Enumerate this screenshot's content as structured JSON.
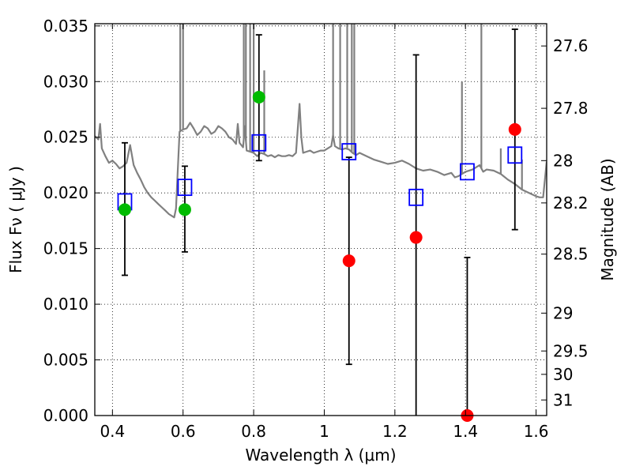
{
  "chart_data": {
    "type": "scatter",
    "xlabel": "Wavelength  λ (μm)",
    "ylabel": "Flux  Fν  ( μJy )",
    "y2label": "Magnitude (AB)",
    "xlim": [
      0.35,
      1.63
    ],
    "ylim": [
      0.0,
      0.0352
    ],
    "x_ticks": [
      0.4,
      0.6,
      0.8,
      1.0,
      1.2,
      1.4,
      1.6
    ],
    "x_tick_labels": [
      "0.4",
      "0.6",
      "0.8",
      "1",
      "1.2",
      "1.4",
      "1.6"
    ],
    "y_ticks": [
      0.0,
      0.005,
      0.01,
      0.015,
      0.02,
      0.025,
      0.03,
      0.035
    ],
    "y_tick_labels": [
      "0.000",
      "0.005",
      "0.010",
      "0.015",
      "0.020",
      "0.025",
      "0.030",
      "0.035"
    ],
    "y2_ticks": [
      {
        "label": "27.6",
        "flux": 0.0332
      },
      {
        "label": "27.8",
        "flux": 0.0276
      },
      {
        "label": "28",
        "flux": 0.0229
      },
      {
        "label": "28.2",
        "flux": 0.0191
      },
      {
        "label": "28.5",
        "flux": 0.0145
      },
      {
        "label": "29",
        "flux": 0.0092
      },
      {
        "label": "29.5",
        "flux": 0.0058
      },
      {
        "label": "30",
        "flux": 0.0037
      },
      {
        "label": "31",
        "flux": 0.0014
      }
    ],
    "grid": true,
    "colors": {
      "spectrum": "#808080",
      "model": "#0000ff",
      "green": "#00bb00",
      "red": "#ff0000",
      "errorbar": "#000000"
    },
    "spectrum": {
      "x": [
        0.35,
        0.36,
        0.365,
        0.37,
        0.38,
        0.39,
        0.4,
        0.41,
        0.42,
        0.43,
        0.44,
        0.45,
        0.46,
        0.47,
        0.48,
        0.49,
        0.5,
        0.51,
        0.52,
        0.53,
        0.54,
        0.55,
        0.56,
        0.57,
        0.575,
        0.58,
        0.585,
        0.59,
        0.6,
        0.61,
        0.62,
        0.63,
        0.64,
        0.65,
        0.66,
        0.67,
        0.68,
        0.69,
        0.7,
        0.71,
        0.72,
        0.73,
        0.74,
        0.75,
        0.755,
        0.76,
        0.77,
        0.775,
        0.78,
        0.79,
        0.8,
        0.81,
        0.82,
        0.83,
        0.84,
        0.85,
        0.86,
        0.87,
        0.88,
        0.89,
        0.9,
        0.91,
        0.92,
        0.93,
        0.935,
        0.94,
        0.95,
        0.96,
        0.97,
        0.98,
        0.99,
        1.0,
        1.01,
        1.02,
        1.025,
        1.03,
        1.04,
        1.05,
        1.06,
        1.07,
        1.08,
        1.09,
        1.1,
        1.12,
        1.14,
        1.16,
        1.18,
        1.2,
        1.22,
        1.24,
        1.26,
        1.28,
        1.3,
        1.32,
        1.34,
        1.36,
        1.37,
        1.38,
        1.4,
        1.42,
        1.44,
        1.45,
        1.46,
        1.48,
        1.5,
        1.52,
        1.54,
        1.56,
        1.58,
        1.6,
        1.61,
        1.62,
        1.63
      ],
      "y": [
        0.0251,
        0.0248,
        0.0262,
        0.024,
        0.0233,
        0.0227,
        0.0229,
        0.0226,
        0.0222,
        0.0224,
        0.0227,
        0.0243,
        0.0225,
        0.0218,
        0.0212,
        0.0205,
        0.02,
        0.0196,
        0.0193,
        0.019,
        0.0187,
        0.0184,
        0.0181,
        0.0179,
        0.0178,
        0.0186,
        0.022,
        0.0255,
        0.0257,
        0.0258,
        0.0263,
        0.0258,
        0.0252,
        0.0255,
        0.026,
        0.0258,
        0.0253,
        0.0255,
        0.026,
        0.0258,
        0.0255,
        0.025,
        0.0248,
        0.0244,
        0.0262,
        0.0245,
        0.0241,
        0.026,
        0.0238,
        0.0237,
        0.0236,
        0.0233,
        0.0236,
        0.0235,
        0.0233,
        0.0234,
        0.0232,
        0.0234,
        0.0233,
        0.0233,
        0.0234,
        0.0233,
        0.0236,
        0.028,
        0.025,
        0.0236,
        0.0237,
        0.0238,
        0.0236,
        0.0237,
        0.0238,
        0.0238,
        0.024,
        0.0242,
        0.0252,
        0.0242,
        0.024,
        0.0239,
        0.024,
        0.0239,
        0.0236,
        0.0234,
        0.0236,
        0.0233,
        0.023,
        0.0228,
        0.0226,
        0.0227,
        0.0229,
        0.0226,
        0.0222,
        0.022,
        0.0221,
        0.0219,
        0.0216,
        0.0218,
        0.0214,
        0.0215,
        0.0219,
        0.0221,
        0.0225,
        0.0219,
        0.0221,
        0.022,
        0.0217,
        0.0212,
        0.0208,
        0.0203,
        0.02,
        0.0197,
        0.0196,
        0.0196,
        0.0228
      ]
    },
    "spectrum_spikes": [
      {
        "x": 0.592,
        "y": 0.0352
      },
      {
        "x": 0.6,
        "y": 0.0352
      },
      {
        "x": 0.772,
        "y": 0.0352
      },
      {
        "x": 0.778,
        "y": 0.0352
      },
      {
        "x": 0.79,
        "y": 0.0352
      },
      {
        "x": 0.8,
        "y": 0.0352
      },
      {
        "x": 0.83,
        "y": 0.031
      },
      {
        "x": 1.025,
        "y": 0.0352
      },
      {
        "x": 1.045,
        "y": 0.0352
      },
      {
        "x": 1.065,
        "y": 0.0352
      },
      {
        "x": 1.078,
        "y": 0.0352
      },
      {
        "x": 1.085,
        "y": 0.0352
      },
      {
        "x": 1.39,
        "y": 0.03
      },
      {
        "x": 1.445,
        "y": 0.0352
      },
      {
        "x": 1.5,
        "y": 0.024
      },
      {
        "x": 1.56,
        "y": 0.023
      }
    ],
    "model_points": [
      {
        "x": 0.435,
        "y": 0.0192
      },
      {
        "x": 0.605,
        "y": 0.0205
      },
      {
        "x": 0.815,
        "y": 0.0245
      },
      {
        "x": 1.07,
        "y": 0.0237
      },
      {
        "x": 1.26,
        "y": 0.0196
      },
      {
        "x": 1.405,
        "y": 0.0219
      },
      {
        "x": 1.54,
        "y": 0.0234
      }
    ],
    "green_points": [
      {
        "x": 0.435,
        "y": 0.0185
      },
      {
        "x": 0.605,
        "y": 0.0185
      },
      {
        "x": 0.815,
        "y": 0.0286
      }
    ],
    "red_points": [
      {
        "x": 1.07,
        "y": 0.0139
      },
      {
        "x": 1.26,
        "y": 0.016
      },
      {
        "x": 1.405,
        "y": 0.0
      },
      {
        "x": 1.54,
        "y": 0.0257
      }
    ],
    "error_bars": [
      {
        "x": 0.435,
        "low": 0.0126,
        "high": 0.0245
      },
      {
        "x": 0.605,
        "low": 0.0147,
        "high": 0.0224
      },
      {
        "x": 0.815,
        "low": 0.0229,
        "high": 0.0342
      },
      {
        "x": 1.07,
        "low": 0.0046,
        "high": 0.0232
      },
      {
        "x": 1.26,
        "low": 0.0,
        "high": 0.0324
      },
      {
        "x": 1.405,
        "low": 0.0,
        "high": 0.0142
      },
      {
        "x": 1.54,
        "low": 0.0167,
        "high": 0.0347
      }
    ]
  }
}
